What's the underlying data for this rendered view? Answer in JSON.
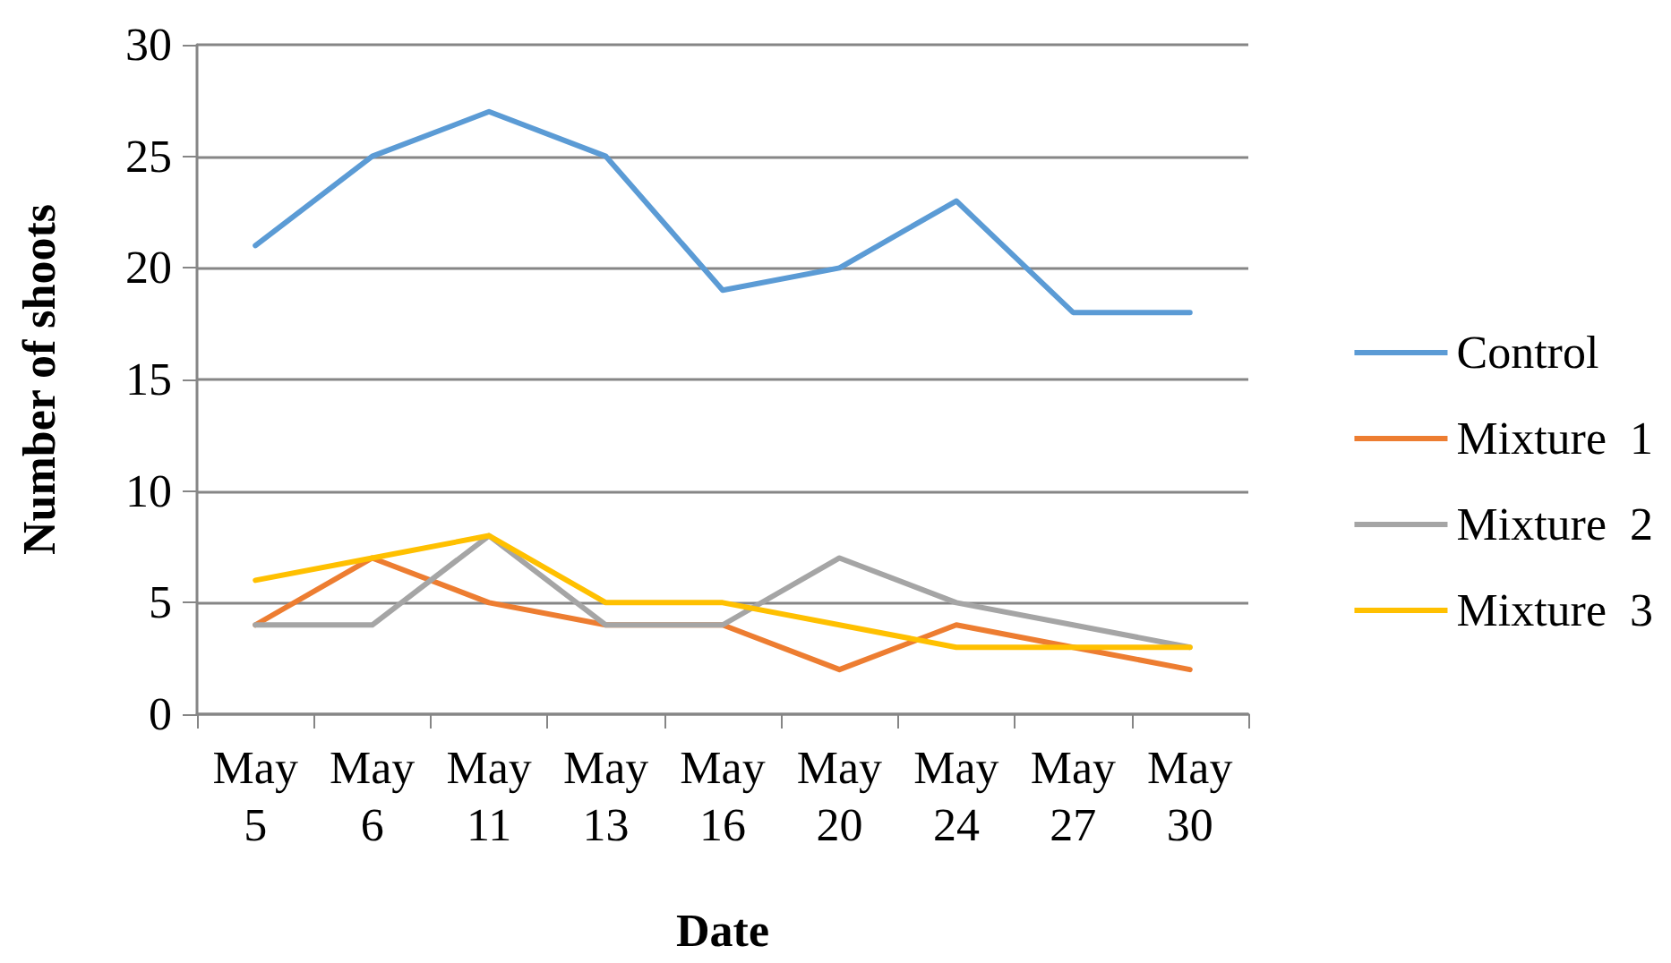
{
  "chart_data": {
    "type": "line",
    "xlabel": "Date",
    "ylabel": "Number of shoots",
    "categories": [
      "May 5",
      "May 6",
      "May 11",
      "May 13",
      "May 16",
      "May 20",
      "May 24",
      "May 27",
      "May 30"
    ],
    "series": [
      {
        "name": "Control",
        "color": "#5b9bd5",
        "values": [
          21,
          25,
          27,
          25,
          19,
          20,
          23,
          18,
          18
        ]
      },
      {
        "name": "Mixture  1",
        "color": "#ed7d31",
        "values": [
          4,
          7,
          5,
          4,
          4,
          2,
          4,
          3,
          2
        ]
      },
      {
        "name": "Mixture  2",
        "color": "#a5a5a5",
        "values": [
          4,
          4,
          8,
          4,
          4,
          7,
          5,
          4,
          3
        ]
      },
      {
        "name": "Mixture  3",
        "color": "#ffc000",
        "values": [
          6,
          7,
          8,
          5,
          5,
          4,
          3,
          3,
          3
        ]
      }
    ],
    "ylim": [
      0,
      30
    ],
    "yticks": [
      0,
      5,
      10,
      15,
      20,
      25,
      30
    ],
    "grid": "y",
    "legend": "right",
    "marker": "none",
    "line_style": "solid"
  }
}
